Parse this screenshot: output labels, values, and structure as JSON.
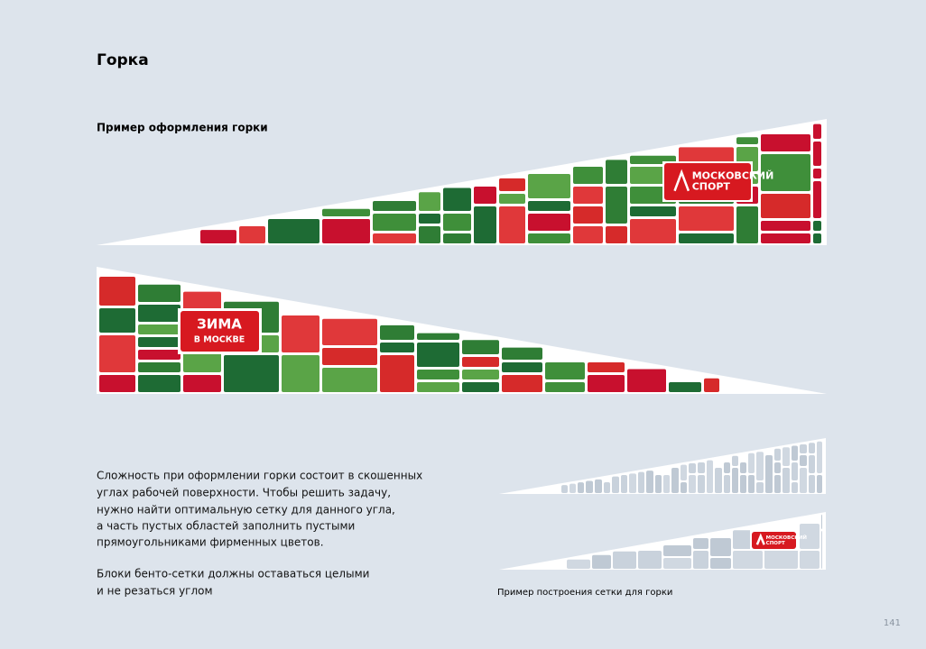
{
  "header": {
    "title": "Горка"
  },
  "example": {
    "title": "Пример оформления горки",
    "logo_text": [
      "МОСКОВСКИЙ",
      "СПОРТ"
    ],
    "banner_text": [
      "ЗИМА",
      "В МОСКВЕ"
    ]
  },
  "body": {
    "paragraphs": [
      [
        "Сложность при оформлении горки состоит в скошенных",
        "углах рабочей поверхности. Чтобы решить задачу,",
        "нужно найти оптимальную сетку для данного угла,",
        "а часть пустых областей заполнить пустыми",
        "прямоугольниками фирменных цветов."
      ],
      [
        "Блоки бенто-сетки должны оставаться целыми",
        "и не резаться углом"
      ]
    ]
  },
  "grid_example": {
    "caption": "Пример построения сетки для горки",
    "logo_text": [
      "МОСКОВСКИЙ",
      "СПОРТ"
    ]
  },
  "page_number": "141"
}
